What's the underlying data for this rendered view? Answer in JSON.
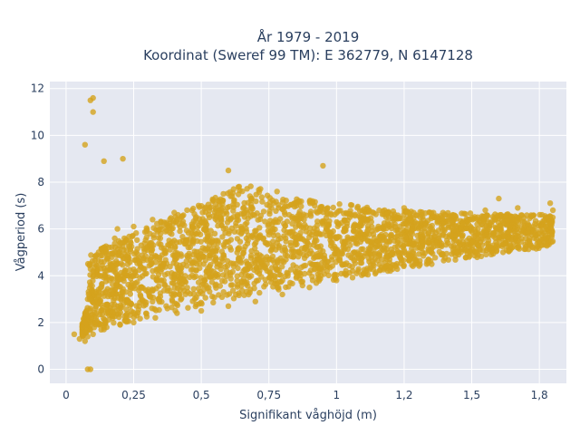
{
  "chart_data": {
    "type": "scatter",
    "title_lines": [
      "År 1979 - 2019",
      "Koordinat (Sweref 99 TM): E 362779, N 6147128"
    ],
    "xlabel": "Signifikant våghöjd (m)",
    "ylabel": "Vågperiod (s)",
    "xlim": [
      -0.06,
      1.85
    ],
    "ylim": [
      -0.6,
      12.3
    ],
    "xticks": [
      0,
      0.25,
      0.5,
      0.75,
      1,
      1.25,
      1.5,
      1.75
    ],
    "xtick_labels": [
      "0",
      "0,25",
      "0,5",
      "0,75",
      "1",
      "1,2",
      "1,5",
      "1,8"
    ],
    "yticks": [
      0,
      2,
      4,
      6,
      8,
      10,
      12
    ],
    "ytick_labels": [
      "0",
      "2",
      "4",
      "6",
      "8",
      "10",
      "12"
    ],
    "grid": true,
    "marker_color": "#d4a21d",
    "plot_bg": "#e5e8f1",
    "series": [
      {
        "points": [
          [
            0.03,
            1.5
          ],
          [
            0.05,
            1.3
          ],
          [
            0.06,
            1.6
          ],
          [
            0.07,
            1.2
          ],
          [
            0.08,
            1.4
          ],
          [
            0.07,
            2.0
          ],
          [
            0.06,
            1.8
          ],
          [
            0.08,
            2.3
          ],
          [
            0.09,
            2.6
          ],
          [
            0.08,
            3.0
          ],
          [
            0.09,
            3.6
          ],
          [
            0.1,
            4.2
          ],
          [
            0.1,
            1.5
          ],
          [
            0.11,
            2.0
          ],
          [
            0.12,
            2.8
          ],
          [
            0.12,
            3.4
          ],
          [
            0.13,
            4.0
          ],
          [
            0.13,
            4.6
          ],
          [
            0.14,
            5.2
          ],
          [
            0.14,
            1.7
          ],
          [
            0.15,
            2.4
          ],
          [
            0.16,
            3.2
          ],
          [
            0.16,
            3.8
          ],
          [
            0.17,
            4.4
          ],
          [
            0.18,
            5.0
          ],
          [
            0.18,
            5.6
          ],
          [
            0.19,
            6.0
          ],
          [
            0.2,
            1.9
          ],
          [
            0.2,
            2.6
          ],
          [
            0.21,
            3.3
          ],
          [
            0.22,
            4.1
          ],
          [
            0.23,
            4.8
          ],
          [
            0.24,
            5.4
          ],
          [
            0.25,
            6.1
          ],
          [
            0.25,
            2.0
          ],
          [
            0.27,
            2.7
          ],
          [
            0.28,
            3.5
          ],
          [
            0.29,
            4.3
          ],
          [
            0.3,
            5.1
          ],
          [
            0.31,
            5.8
          ],
          [
            0.32,
            6.4
          ],
          [
            0.33,
            2.2
          ],
          [
            0.34,
            3.0
          ],
          [
            0.35,
            3.8
          ],
          [
            0.36,
            4.5
          ],
          [
            0.38,
            5.3
          ],
          [
            0.39,
            6.0
          ],
          [
            0.4,
            6.7
          ],
          [
            0.41,
            2.4
          ],
          [
            0.42,
            3.2
          ],
          [
            0.44,
            4.0
          ],
          [
            0.45,
            4.8
          ],
          [
            0.46,
            5.6
          ],
          [
            0.48,
            6.3
          ],
          [
            0.49,
            7.0
          ],
          [
            0.5,
            2.5
          ],
          [
            0.51,
            3.4
          ],
          [
            0.53,
            4.2
          ],
          [
            0.54,
            5.0
          ],
          [
            0.55,
            5.8
          ],
          [
            0.57,
            6.5
          ],
          [
            0.58,
            7.2
          ],
          [
            0.6,
            2.7
          ],
          [
            0.61,
            3.6
          ],
          [
            0.62,
            4.4
          ],
          [
            0.64,
            5.2
          ],
          [
            0.65,
            6.0
          ],
          [
            0.66,
            6.7
          ],
          [
            0.68,
            7.4
          ],
          [
            0.7,
            2.9
          ],
          [
            0.71,
            3.8
          ],
          [
            0.72,
            4.6
          ],
          [
            0.74,
            5.4
          ],
          [
            0.75,
            6.2
          ],
          [
            0.76,
            6.9
          ],
          [
            0.78,
            7.6
          ],
          [
            0.8,
            3.2
          ],
          [
            0.82,
            4.0
          ],
          [
            0.84,
            4.8
          ],
          [
            0.86,
            5.6
          ],
          [
            0.88,
            6.4
          ],
          [
            0.9,
            3.5
          ],
          [
            0.92,
            4.3
          ],
          [
            0.94,
            5.1
          ],
          [
            0.96,
            5.9
          ],
          [
            0.98,
            6.6
          ],
          [
            1.0,
            3.8
          ],
          [
            1.02,
            4.5
          ],
          [
            1.05,
            5.3
          ],
          [
            1.08,
            6.1
          ],
          [
            1.1,
            4.1
          ],
          [
            1.13,
            4.8
          ],
          [
            1.16,
            5.6
          ],
          [
            1.19,
            6.3
          ],
          [
            1.22,
            4.4
          ],
          [
            1.25,
            5.1
          ],
          [
            1.28,
            5.8
          ],
          [
            1.31,
            6.5
          ],
          [
            1.34,
            4.7
          ],
          [
            1.37,
            5.4
          ],
          [
            1.4,
            6.0
          ],
          [
            1.43,
            6.6
          ],
          [
            1.46,
            5.0
          ],
          [
            1.49,
            5.6
          ],
          [
            1.52,
            6.2
          ],
          [
            1.55,
            6.8
          ],
          [
            1.58,
            5.3
          ],
          [
            1.61,
            5.9
          ],
          [
            1.64,
            6.4
          ],
          [
            1.67,
            6.9
          ],
          [
            1.7,
            5.6
          ],
          [
            1.73,
            6.1
          ],
          [
            1.76,
            6.6
          ],
          [
            1.79,
            7.1
          ],
          [
            1.8,
            6.8
          ],
          [
            0.09,
            11.5
          ],
          [
            0.1,
            11.6
          ],
          [
            0.1,
            11.0
          ],
          [
            0.07,
            9.6
          ],
          [
            0.08,
            0.0
          ],
          [
            0.09,
            0.0
          ],
          [
            0.21,
            9.0
          ],
          [
            0.14,
            8.9
          ],
          [
            0.6,
            8.5
          ],
          [
            1.25,
            6.9
          ],
          [
            1.6,
            7.3
          ],
          [
            0.95,
            8.7
          ]
        ]
      }
    ]
  }
}
